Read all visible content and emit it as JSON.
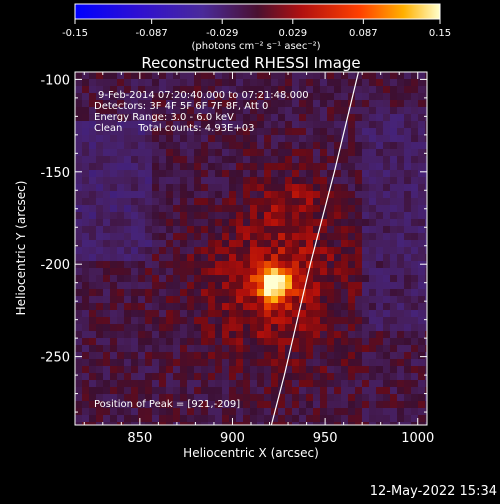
{
  "chart_data": {
    "type": "heatmap",
    "title": "Reconstructed RHESSI Image",
    "xlabel": "Heliocentric X (arcsec)",
    "ylabel": "Heliocentric Y (arcsec)",
    "xlim": [
      815,
      1005
    ],
    "ylim": [
      -287,
      -96
    ],
    "xticks": [
      850,
      900,
      950,
      1000
    ],
    "yticks": [
      -100,
      -150,
      -200,
      -250
    ],
    "colorbar": {
      "ticks": [
        "-0.15",
        "-0.087",
        "-0.029",
        "0.029",
        "0.087",
        "0.15"
      ],
      "range": [
        -0.15,
        0.15
      ],
      "unit": "(photons cm⁻² s⁻¹ asec⁻²)"
    },
    "annotations": {
      "time": "9-Feb-2014 07:20:40.000 to 07:21:48.000",
      "detectors": "Detectors: 3F 4F 5F 6F 7F 8F, Att 0",
      "energy": "Energy Range: 3.0 - 6.0 keV",
      "clean": "Clean     Total counts: 4.93E+03",
      "peak": "Position of Peak = [921,-209]"
    },
    "peak": {
      "x": 921,
      "y": -209
    },
    "limb_curve": [
      [
        968,
        -96
      ],
      [
        955,
        -150
      ],
      [
        942,
        -200
      ],
      [
        928,
        -260
      ],
      [
        921,
        -287
      ]
    ],
    "footer_date": "12-May-2022 15:34",
    "colors": {
      "background": "#000000",
      "axis": "#ffffff",
      "limb": "#ffffff"
    }
  }
}
